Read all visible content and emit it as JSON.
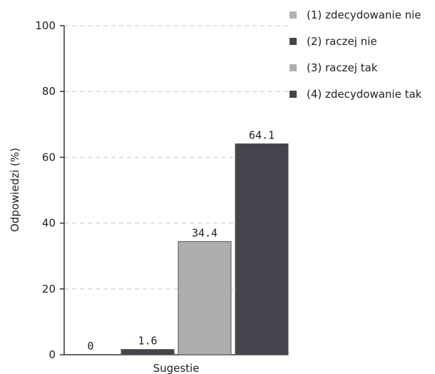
{
  "chart_data": {
    "type": "bar",
    "categories": [
      "Sugestie"
    ],
    "xlabel": "Sugestie",
    "ylabel": "Odpowiedzi (%)",
    "ylim": [
      0,
      100
    ],
    "yticks": [
      0,
      20,
      40,
      60,
      80,
      100
    ],
    "grid": true,
    "legend_position": "right",
    "series": [
      {
        "name": "(1) zdecydowanie nie",
        "values": [
          0
        ],
        "label": "0",
        "color": "#b3b3b3"
      },
      {
        "name": "(2) raczej nie",
        "values": [
          1.6
        ],
        "label": "1.6",
        "color": "#44444c"
      },
      {
        "name": "(3) raczej tak",
        "values": [
          34.4
        ],
        "label": "34.4",
        "color": "#aeaeae"
      },
      {
        "name": "(4) zdecydowanie tak",
        "values": [
          64.1
        ],
        "label": "64.1",
        "color": "#44444c"
      }
    ]
  }
}
